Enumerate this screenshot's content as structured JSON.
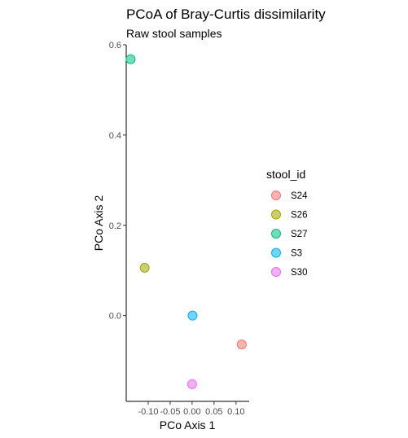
{
  "chart_data": {
    "type": "scatter",
    "title": "PCoA of Bray-Curtis dissimilarity",
    "subtitle": "Raw stool samples",
    "xlabel": "PCo Axis 1",
    "ylabel": "PCo Axis 2",
    "xlim": [
      -0.15,
      0.13
    ],
    "ylim": [
      -0.19,
      0.6
    ],
    "x_ticks": [
      -0.1,
      -0.05,
      0.0,
      0.05,
      0.1
    ],
    "x_tick_labels": [
      "-0.10",
      "-0.05",
      "0.00",
      "0.05",
      "0.10"
    ],
    "y_ticks": [
      0.0,
      0.2,
      0.4,
      0.6
    ],
    "y_tick_labels": [
      "0.0",
      "0.2",
      "0.4",
      "0.6"
    ],
    "grid": false,
    "legend": {
      "title": "stool_id",
      "position": "right"
    },
    "series": [
      {
        "name": "S24",
        "color": "#F8766D",
        "x": 0.113,
        "y": -0.064
      },
      {
        "name": "S26",
        "color": "#A3A500",
        "x": -0.108,
        "y": 0.106
      },
      {
        "name": "S27",
        "color": "#00BF7D",
        "x": -0.14,
        "y": 0.568
      },
      {
        "name": "S3",
        "color": "#00B0F6",
        "x": 0.001,
        "y": 0.0
      },
      {
        "name": "S30",
        "color": "#E76BF3",
        "x": 0.0,
        "y": -0.152
      }
    ]
  }
}
